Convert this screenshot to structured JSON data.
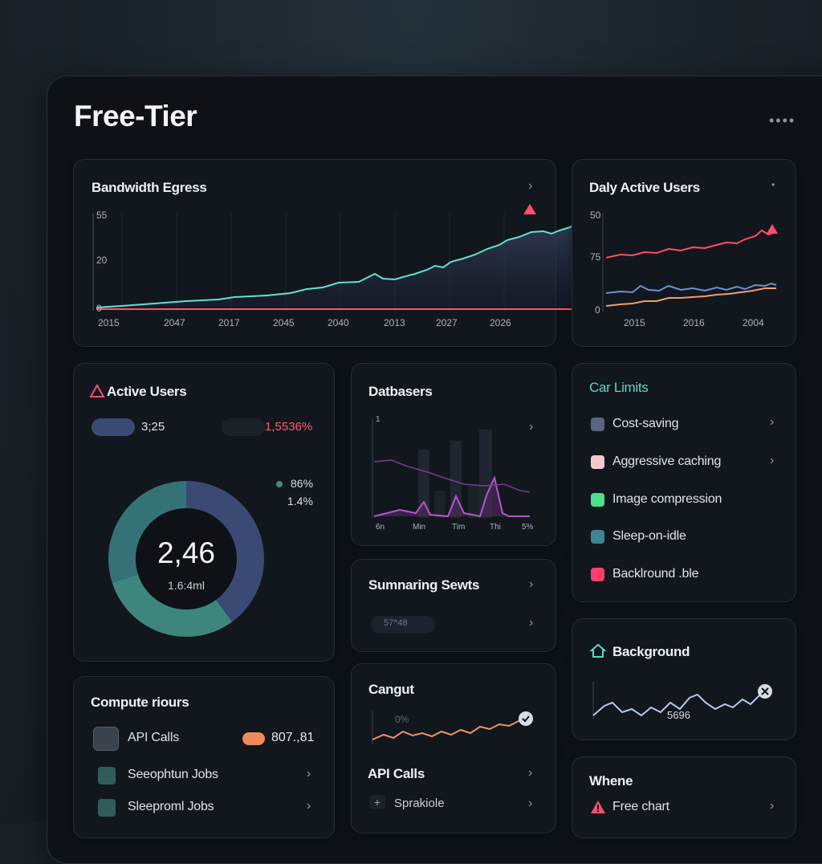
{
  "app": {
    "title": "Free-Tier",
    "more_label": "••••"
  },
  "bandwidth": {
    "title": "Bandwidth Egress",
    "y_ticks": [
      "55",
      "20",
      "0"
    ],
    "x_ticks": [
      "2015",
      "2047",
      "2017",
      "2045",
      "2040",
      "2013",
      "2027",
      "2026"
    ],
    "line_color": "#5fe3d0",
    "threshold_color": "#ff4d6a"
  },
  "dau": {
    "title": "Daly Active Users",
    "y_ticks": [
      "50",
      "75",
      "0"
    ],
    "x_ticks": [
      "2015",
      "2016",
      "2004"
    ],
    "series_colors": [
      "#ff4d6a",
      "#6f8fd6",
      "#f0a070"
    ]
  },
  "active_users": {
    "title": "Active Users",
    "pill_value": "3;25",
    "pct_value": "1,5536%",
    "legend_1": "86%",
    "legend_2": "1.4%",
    "center_value": "2,46",
    "center_sub": "1.6:4ml",
    "donut_colors": [
      "#3b4a75",
      "#3f8c84",
      "#357277"
    ],
    "donut_shares": [
      0.4,
      0.3,
      0.3
    ]
  },
  "databases": {
    "title": "Datbasers",
    "y_tick": "1",
    "x_ticks": [
      "6n",
      "Min",
      "Tim",
      "Thi",
      "5%"
    ],
    "line_color": "#b05ac8"
  },
  "summary": {
    "title": "Sumnaring Sewts",
    "pill_text": "57^48"
  },
  "cangut": {
    "title": "Cangut",
    "value": "0%"
  },
  "api_calls_card": {
    "title": "API Calls",
    "sub": "Sprakiole"
  },
  "compute": {
    "title": "Compute riours",
    "rows": [
      {
        "label": "API Calls",
        "value": "807.,81"
      },
      {
        "label": "Seeophtun Jobs"
      },
      {
        "label": "Sleeproml Jobs"
      }
    ]
  },
  "limits": {
    "title": "Car Limits",
    "items": [
      {
        "label": "Cost-saving",
        "color": "#5a6680"
      },
      {
        "label": "Aggressive caching",
        "color": "#f3c9cc"
      },
      {
        "label": "Image compression",
        "color": "#4ee08a"
      },
      {
        "label": "Sleep-on-idle",
        "color": "#3d8590"
      },
      {
        "label": "Backlround .ble",
        "color": "#ff3d6a"
      }
    ]
  },
  "background": {
    "title": "Background",
    "value": "5696"
  },
  "whene": {
    "title": "Whene",
    "item": "Free chart"
  }
}
